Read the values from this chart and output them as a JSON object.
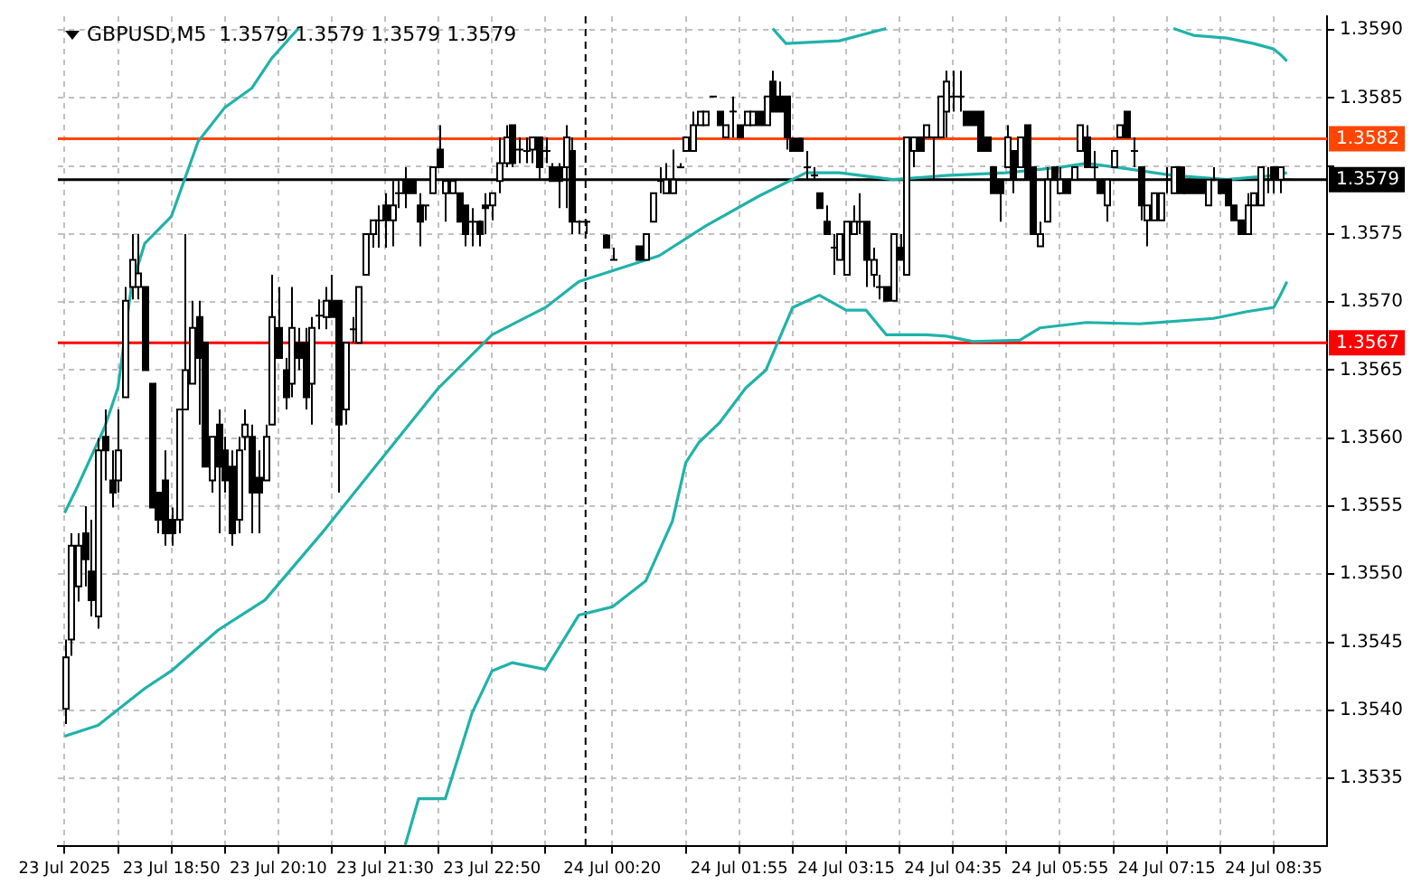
{
  "chart_data": {
    "type": "candlestick",
    "title": "GBPUSD,M5  1.3579 1.3579 1.3579 1.3579",
    "x": [
      "2025-07-23T17:30",
      "2025-07-23T17:35",
      "2025-07-23T17:40",
      "2025-07-23T17:45",
      "2025-07-23T17:50",
      "2025-07-23T17:55",
      "2025-07-23T18:00",
      "2025-07-23T18:05",
      "2025-07-23T18:10",
      "2025-07-23T18:15",
      "2025-07-23T18:20",
      "2025-07-23T18:25",
      "2025-07-23T18:30",
      "2025-07-23T18:35",
      "2025-07-23T18:40",
      "2025-07-23T18:45",
      "2025-07-23T18:50",
      "2025-07-23T18:55",
      "2025-07-23T19:00",
      "2025-07-23T19:05",
      "2025-07-23T19:10",
      "2025-07-23T19:15",
      "2025-07-23T19:20",
      "2025-07-23T19:25",
      "2025-07-23T19:30",
      "2025-07-23T19:35",
      "2025-07-23T19:40",
      "2025-07-23T19:45",
      "2025-07-23T19:50",
      "2025-07-23T19:55",
      "2025-07-23T20:00",
      "2025-07-23T20:05",
      "2025-07-23T20:10",
      "2025-07-23T20:15",
      "2025-07-23T20:20",
      "2025-07-23T20:25",
      "2025-07-23T20:30",
      "2025-07-23T20:35",
      "2025-07-23T20:40",
      "2025-07-23T20:45",
      "2025-07-23T20:50",
      "2025-07-23T20:55",
      "2025-07-23T21:00",
      "2025-07-23T21:05",
      "2025-07-23T21:10",
      "2025-07-23T21:15",
      "2025-07-23T21:20",
      "2025-07-23T21:25",
      "2025-07-23T21:30",
      "2025-07-23T21:35",
      "2025-07-23T21:40",
      "2025-07-23T21:45",
      "2025-07-23T21:50",
      "2025-07-23T21:55",
      "2025-07-23T22:00",
      "2025-07-23T22:05",
      "2025-07-23T22:10",
      "2025-07-23T22:15",
      "2025-07-23T22:20",
      "2025-07-23T22:25",
      "2025-07-23T22:30",
      "2025-07-23T22:35",
      "2025-07-23T22:40",
      "2025-07-23T22:45",
      "2025-07-23T22:50",
      "2025-07-23T22:55",
      "2025-07-23T23:00",
      "2025-07-23T23:05",
      "2025-07-23T23:10",
      "2025-07-23T23:15",
      "2025-07-23T23:20",
      "2025-07-23T23:25",
      "2025-07-23T23:30",
      "2025-07-23T23:35",
      "2025-07-23T23:40",
      "2025-07-23T23:45",
      "2025-07-23T23:50",
      "2025-07-23T23:55",
      "2025-07-24T00:00",
      "2025-07-24T00:15",
      "2025-07-24T00:20",
      "2025-07-24T00:40",
      "2025-07-24T00:45",
      "2025-07-24T00:50",
      "2025-07-24T00:55",
      "2025-07-24T01:00",
      "2025-07-24T01:05",
      "2025-07-24T01:10",
      "2025-07-24T01:15",
      "2025-07-24T01:20",
      "2025-07-24T01:25",
      "2025-07-24T01:30",
      "2025-07-24T01:35",
      "2025-07-24T01:40",
      "2025-07-24T01:45",
      "2025-07-24T01:50",
      "2025-07-24T01:55",
      "2025-07-24T02:00",
      "2025-07-24T02:05",
      "2025-07-24T02:10",
      "2025-07-24T02:15",
      "2025-07-24T02:20",
      "2025-07-24T02:25",
      "2025-07-24T02:30",
      "2025-07-24T02:35",
      "2025-07-24T02:40",
      "2025-07-24T02:45",
      "2025-07-24T02:50",
      "2025-07-24T02:55",
      "2025-07-24T03:00",
      "2025-07-24T03:05",
      "2025-07-24T03:10",
      "2025-07-24T03:15",
      "2025-07-24T03:20",
      "2025-07-24T03:25",
      "2025-07-24T03:30",
      "2025-07-24T03:35",
      "2025-07-24T03:40",
      "2025-07-24T03:45",
      "2025-07-24T03:50",
      "2025-07-24T03:55",
      "2025-07-24T04:00",
      "2025-07-24T04:05",
      "2025-07-24T04:10",
      "2025-07-24T04:15",
      "2025-07-24T04:20",
      "2025-07-24T04:25",
      "2025-07-24T04:30",
      "2025-07-24T04:35",
      "2025-07-24T04:40",
      "2025-07-24T04:45",
      "2025-07-24T04:50",
      "2025-07-24T04:55",
      "2025-07-24T05:00",
      "2025-07-24T05:05",
      "2025-07-24T05:10",
      "2025-07-24T05:15",
      "2025-07-24T05:20",
      "2025-07-24T05:25",
      "2025-07-24T05:30",
      "2025-07-24T05:35",
      "2025-07-24T05:40",
      "2025-07-24T05:45",
      "2025-07-24T05:50",
      "2025-07-24T05:55",
      "2025-07-24T06:00",
      "2025-07-24T06:05",
      "2025-07-24T06:10",
      "2025-07-24T06:15",
      "2025-07-24T06:20",
      "2025-07-24T06:25",
      "2025-07-24T06:30",
      "2025-07-24T06:35",
      "2025-07-24T06:40",
      "2025-07-24T06:45",
      "2025-07-24T06:50",
      "2025-07-24T06:55",
      "2025-07-24T07:00",
      "2025-07-24T07:05",
      "2025-07-24T07:10",
      "2025-07-24T07:15",
      "2025-07-24T07:20",
      "2025-07-24T07:25",
      "2025-07-24T07:30",
      "2025-07-24T07:35",
      "2025-07-24T07:40",
      "2025-07-24T07:45",
      "2025-07-24T07:50",
      "2025-07-24T07:55",
      "2025-07-24T08:00",
      "2025-07-24T08:05",
      "2025-07-24T08:10",
      "2025-07-24T08:15",
      "2025-07-24T08:20",
      "2025-07-24T08:25",
      "2025-07-24T08:30",
      "2025-07-24T08:35",
      "2025-07-24T08:40",
      "2025-07-24T08:45"
    ],
    "ohlc": [
      [
        1.35401,
        1.35452,
        1.3539,
        1.35439
      ],
      [
        1.35452,
        1.3553,
        1.3544,
        1.35521
      ],
      [
        1.35491,
        1.3553,
        1.3548,
        1.35521
      ],
      [
        1.3553,
        1.3555,
        1.35491,
        1.35511
      ],
      [
        1.35502,
        1.3554,
        1.35469,
        1.35481
      ],
      [
        1.35469,
        1.356,
        1.3546,
        1.35591
      ],
      [
        1.35601,
        1.35621,
        1.35569,
        1.35591
      ],
      [
        1.35569,
        1.35591,
        1.35549,
        1.3556
      ],
      [
        1.35569,
        1.35621,
        1.3556,
        1.35591
      ],
      [
        1.3563,
        1.35711,
        1.3563,
        1.35701
      ],
      [
        1.35711,
        1.3575,
        1.35702,
        1.35731
      ],
      [
        1.35711,
        1.3575,
        1.35702,
        1.35721
      ],
      [
        1.35711,
        1.35711,
        1.3565,
        1.3565
      ],
      [
        1.3564,
        1.3564,
        1.35549,
        1.35549
      ],
      [
        1.3556,
        1.3556,
        1.3553,
        1.3554
      ],
      [
        1.35569,
        1.35591,
        1.35521,
        1.3553
      ],
      [
        1.3554,
        1.35549,
        1.35521,
        1.3553
      ],
      [
        1.3554,
        1.35621,
        1.3553,
        1.35621
      ],
      [
        1.35621,
        1.3575,
        1.35621,
        1.3565
      ],
      [
        1.3564,
        1.35701,
        1.3564,
        1.35681
      ],
      [
        1.35689,
        1.35701,
        1.3561,
        1.35659
      ],
      [
        1.3567,
        1.3567,
        1.35579,
        1.35579
      ],
      [
        1.35569,
        1.35601,
        1.3556,
        1.35601
      ],
      [
        1.3561,
        1.35621,
        1.3553,
        1.35579
      ],
      [
        1.35591,
        1.35601,
        1.3556,
        1.35569
      ],
      [
        1.35579,
        1.35591,
        1.35521,
        1.3553
      ],
      [
        1.3554,
        1.35601,
        1.3553,
        1.35591
      ],
      [
        1.35601,
        1.35621,
        1.35591,
        1.3561
      ],
      [
        1.35601,
        1.3561,
        1.3553,
        1.3556
      ],
      [
        1.35571,
        1.35591,
        1.3553,
        1.3556
      ],
      [
        1.35569,
        1.3561,
        1.35569,
        1.35601
      ],
      [
        1.3561,
        1.3572,
        1.3561,
        1.35689
      ],
      [
        1.35681,
        1.35711,
        1.35659,
        1.35659
      ],
      [
        1.3565,
        1.35659,
        1.35621,
        1.3563
      ],
      [
        1.3564,
        1.35711,
        1.3563,
        1.35681
      ],
      [
        1.3567,
        1.35681,
        1.3565,
        1.35659
      ],
      [
        1.3567,
        1.35681,
        1.35621,
        1.3563
      ],
      [
        1.3564,
        1.35689,
        1.3561,
        1.35681
      ],
      [
        1.3569,
        1.35702,
        1.3568,
        1.35689
      ],
      [
        1.35689,
        1.35711,
        1.3568,
        1.35701
      ],
      [
        1.35701,
        1.3572,
        1.35689,
        1.35689
      ],
      [
        1.35701,
        1.35701,
        1.3556,
        1.3561
      ],
      [
        1.35621,
        1.3567,
        1.3561,
        1.3567
      ],
      [
        1.3568,
        1.35689,
        1.3567,
        1.35681
      ],
      [
        1.3567,
        1.35711,
        1.3567,
        1.35711
      ],
      [
        1.3572,
        1.3575,
        1.3572,
        1.3575
      ],
      [
        1.3575,
        1.3576,
        1.3574,
        1.3576
      ],
      [
        1.3576,
        1.35771,
        1.3574,
        1.35759
      ],
      [
        1.35771,
        1.3578,
        1.3574,
        1.3576
      ],
      [
        1.3576,
        1.35789,
        1.35741,
        1.35771
      ],
      [
        1.3578,
        1.35789,
        1.35769,
        1.3578
      ],
      [
        1.35789,
        1.35799,
        1.35769,
        1.3578
      ],
      [
        1.35789,
        1.35789,
        1.3578,
        1.3578
      ],
      [
        1.35771,
        1.3578,
        1.35741,
        1.35759
      ],
      [
        1.35771,
        1.35771,
        1.3576,
        1.35771
      ],
      [
        1.3578,
        1.35799,
        1.3578,
        1.35799
      ],
      [
        1.35812,
        1.3583,
        1.35799,
        1.35799
      ],
      [
        1.3578,
        1.35789,
        1.35759,
        1.35789
      ],
      [
        1.3578,
        1.35789,
        1.3578,
        1.35789
      ],
      [
        1.3578,
        1.3578,
        1.35759,
        1.35759
      ],
      [
        1.35771,
        1.35771,
        1.35741,
        1.3575
      ],
      [
        1.35759,
        1.35769,
        1.35741,
        1.3576
      ],
      [
        1.35759,
        1.3576,
        1.35741,
        1.3575
      ],
      [
        1.35771,
        1.3578,
        1.3575,
        1.35769
      ],
      [
        1.35771,
        1.3578,
        1.3576,
        1.3578
      ],
      [
        1.35789,
        1.35821,
        1.3578,
        1.35802
      ],
      [
        1.35802,
        1.3583,
        1.35799,
        1.35821
      ],
      [
        1.3583,
        1.3583,
        1.35799,
        1.35802
      ],
      [
        1.35812,
        1.35821,
        1.35802,
        1.35811
      ],
      [
        1.35811,
        1.35821,
        1.35802,
        1.35812
      ],
      [
        1.35812,
        1.35821,
        1.35802,
        1.35821
      ],
      [
        1.35821,
        1.35821,
        1.3579,
        1.35799
      ],
      [
        1.35811,
        1.35821,
        1.35802,
        1.35812
      ],
      [
        1.35799,
        1.35802,
        1.35789,
        1.35789
      ],
      [
        1.35799,
        1.35802,
        1.35769,
        1.35789
      ],
      [
        1.35799,
        1.3583,
        1.35769,
        1.35821
      ],
      [
        1.35811,
        1.35821,
        1.3575,
        1.35759
      ],
      [
        1.35759,
        1.3576,
        1.3575,
        1.35759
      ],
      [
        1.35759,
        1.3576,
        1.3575,
        1.3576
      ],
      [
        1.35749,
        1.3575,
        1.3574,
        1.3574
      ],
      [
        1.35731,
        1.3574,
        1.35731,
        1.35731
      ],
      [
        1.35741,
        1.35741,
        1.35731,
        1.35731
      ],
      [
        1.35731,
        1.3575,
        1.35731,
        1.3575
      ],
      [
        1.35759,
        1.3578,
        1.35759,
        1.3578
      ],
      [
        1.35789,
        1.35799,
        1.3578,
        1.3579
      ],
      [
        1.3578,
        1.35802,
        1.3578,
        1.3579
      ],
      [
        1.3578,
        1.35812,
        1.3578,
        1.3579
      ],
      [
        1.35799,
        1.35802,
        1.35799,
        1.35799
      ],
      [
        1.35811,
        1.35821,
        1.35811,
        1.35821
      ],
      [
        1.35811,
        1.3584,
        1.35811,
        1.3583
      ],
      [
        1.3583,
        1.3584,
        1.3583,
        1.3584
      ],
      [
        1.3583,
        1.3584,
        1.3583,
        1.3584
      ],
      [
        1.35851,
        1.35851,
        1.35851,
        1.35851
      ],
      [
        1.3584,
        1.3584,
        1.3583,
        1.3583
      ],
      [
        1.35821,
        1.3583,
        1.35821,
        1.3583
      ],
      [
        1.3584,
        1.35851,
        1.35821,
        1.3584
      ],
      [
        1.3583,
        1.3583,
        1.35821,
        1.35821
      ],
      [
        1.3583,
        1.3584,
        1.3583,
        1.3584
      ],
      [
        1.3583,
        1.3584,
        1.3583,
        1.3584
      ],
      [
        1.3584,
        1.3584,
        1.3583,
        1.3583
      ],
      [
        1.3583,
        1.35851,
        1.3583,
        1.35851
      ],
      [
        1.35862,
        1.3587,
        1.3584,
        1.3584
      ],
      [
        1.35851,
        1.35862,
        1.3584,
        1.3584
      ],
      [
        1.35851,
        1.35851,
        1.35812,
        1.35821
      ],
      [
        1.3582,
        1.35821,
        1.35811,
        1.35811
      ],
      [
        1.3582,
        1.35821,
        1.35811,
        1.35811
      ],
      [
        1.35799,
        1.35811,
        1.3579,
        1.35799
      ],
      [
        1.35793,
        1.35799,
        1.3579,
        1.35793
      ],
      [
        1.3578,
        1.3578,
        1.35769,
        1.35769
      ],
      [
        1.35759,
        1.35771,
        1.3575,
        1.3575
      ],
      [
        1.3574,
        1.3575,
        1.3572,
        1.3574
      ],
      [
        1.35731,
        1.3575,
        1.35731,
        1.3575
      ],
      [
        1.3572,
        1.35759,
        1.3572,
        1.35759
      ],
      [
        1.3575,
        1.35771,
        1.3575,
        1.35759
      ],
      [
        1.35759,
        1.3578,
        1.3575,
        1.3576
      ],
      [
        1.35759,
        1.35759,
        1.35711,
        1.35731
      ],
      [
        1.3572,
        1.3574,
        1.35711,
        1.35731
      ],
      [
        1.35711,
        1.3572,
        1.35702,
        1.35711
      ],
      [
        1.35711,
        1.35711,
        1.35701,
        1.35701
      ],
      [
        1.35701,
        1.3575,
        1.35701,
        1.3575
      ],
      [
        1.3574,
        1.3575,
        1.35731,
        1.35731
      ],
      [
        1.3572,
        1.35821,
        1.3572,
        1.35821
      ],
      [
        1.35811,
        1.35821,
        1.35799,
        1.35821
      ],
      [
        1.35821,
        1.35821,
        1.35811,
        1.35811
      ],
      [
        1.35821,
        1.3583,
        1.35821,
        1.3583
      ],
      [
        1.35821,
        1.35821,
        1.3579,
        1.35821
      ],
      [
        1.35821,
        1.35851,
        1.35821,
        1.35851
      ],
      [
        1.3584,
        1.3587,
        1.35821,
        1.35862
      ],
      [
        1.35851,
        1.3587,
        1.3584,
        1.3585
      ],
      [
        1.35851,
        1.3587,
        1.3584,
        1.35851
      ],
      [
        1.3584,
        1.3584,
        1.3583,
        1.3583
      ],
      [
        1.3584,
        1.3584,
        1.3583,
        1.3583
      ],
      [
        1.3584,
        1.3584,
        1.35811,
        1.35811
      ],
      [
        1.35821,
        1.35821,
        1.35811,
        1.35811
      ],
      [
        1.35799,
        1.35799,
        1.3578,
        1.3578
      ],
      [
        1.3579,
        1.3579,
        1.35759,
        1.3578
      ],
      [
        1.35799,
        1.3583,
        1.35799,
        1.35821
      ],
      [
        1.35811,
        1.35811,
        1.3578,
        1.3579
      ],
      [
        1.35799,
        1.35821,
        1.35799,
        1.35821
      ],
      [
        1.3583,
        1.3583,
        1.3579,
        1.3579
      ],
      [
        1.35799,
        1.35799,
        1.3575,
        1.3575
      ],
      [
        1.35741,
        1.35759,
        1.35741,
        1.3575
      ],
      [
        1.35759,
        1.35799,
        1.35759,
        1.3579
      ],
      [
        1.35799,
        1.35799,
        1.3579,
        1.3579
      ],
      [
        1.3578,
        1.35799,
        1.3578,
        1.3579
      ],
      [
        1.3579,
        1.3579,
        1.3578,
        1.3578
      ],
      [
        1.3579,
        1.35799,
        1.3579,
        1.35799
      ],
      [
        1.35811,
        1.3583,
        1.35811,
        1.3583
      ],
      [
        1.35821,
        1.3583,
        1.35799,
        1.35799
      ],
      [
        1.35799,
        1.35811,
        1.3579,
        1.35799
      ],
      [
        1.3579,
        1.3579,
        1.3578,
        1.3578
      ],
      [
        1.35771,
        1.3579,
        1.35759,
        1.3579
      ],
      [
        1.35799,
        1.35811,
        1.35799,
        1.35811
      ],
      [
        1.35821,
        1.3583,
        1.35821,
        1.3583
      ],
      [
        1.3584,
        1.3584,
        1.35821,
        1.35821
      ],
      [
        1.35811,
        1.35821,
        1.35799,
        1.35811
      ],
      [
        1.35799,
        1.35799,
        1.3576,
        1.35771
      ],
      [
        1.3576,
        1.35771,
        1.35741,
        1.35771
      ],
      [
        1.3576,
        1.3578,
        1.3576,
        1.3578
      ],
      [
        1.3576,
        1.3578,
        1.3576,
        1.3578
      ],
      [
        1.3579,
        1.35799,
        1.3578,
        1.3579
      ],
      [
        1.3578,
        1.35799,
        1.3578,
        1.35799
      ],
      [
        1.35799,
        1.35799,
        1.3578,
        1.3578
      ],
      [
        1.3579,
        1.3579,
        1.3578,
        1.3578
      ],
      [
        1.3579,
        1.3579,
        1.3578,
        1.3578
      ],
      [
        1.3579,
        1.3579,
        1.3578,
        1.3578
      ],
      [
        1.35771,
        1.3579,
        1.35771,
        1.3579
      ],
      [
        1.3579,
        1.35799,
        1.35789,
        1.3579
      ],
      [
        1.3579,
        1.3579,
        1.3578,
        1.3578
      ],
      [
        1.3579,
        1.3579,
        1.35771,
        1.35771
      ],
      [
        1.35771,
        1.35771,
        1.3576,
        1.3576
      ],
      [
        1.3576,
        1.3576,
        1.3575,
        1.3575
      ],
      [
        1.3575,
        1.3578,
        1.3575,
        1.35771
      ],
      [
        1.35771,
        1.3578,
        1.35771,
        1.3578
      ],
      [
        1.35771,
        1.35799,
        1.35771,
        1.35799
      ],
      [
        1.3579,
        1.35799,
        1.3578,
        1.3579
      ],
      [
        1.35799,
        1.35799,
        1.3578,
        1.3579
      ],
      [
        1.3579,
        1.35799,
        1.3578,
        1.35799
      ],
      [
        1.3579,
        1.3579,
        1.3579,
        1.3579
      ]
    ],
    "series": [
      {
        "type": "line",
        "color": "#20b2aa",
        "x": [
          "2025-07-23T17:30",
          "2025-07-23T17:40",
          "2025-07-23T18:00",
          "2025-07-23T18:10",
          "2025-07-23T18:20",
          "2025-07-23T18:30",
          "2025-07-23T18:50",
          "2025-07-23T19:10",
          "2025-07-23T19:30",
          "2025-07-23T19:50",
          "2025-07-23T20:05",
          "2025-07-23T20:25",
          "2025-07-23T20:30",
          "2025-07-24T02:15",
          "2025-07-24T02:20",
          "2025-07-24T02:30",
          "2025-07-24T03:10",
          "2025-07-24T03:45",
          "2025-07-24T03:50",
          "2025-07-24T07:15",
          "2025-07-24T07:20",
          "2025-07-24T07:35",
          "2025-07-24T08:00",
          "2025-07-24T08:20",
          "2025-07-24T08:35",
          "2025-07-24T08:40",
          "2025-07-24T08:45"
        ],
        "values": [
          1.35545,
          1.35565,
          1.35608,
          1.35637,
          1.35711,
          1.35743,
          1.35763,
          1.35818,
          1.35843,
          1.35857,
          1.35879,
          1.35901,
          null,
          null,
          1.35901,
          1.3589,
          1.35892,
          1.35901,
          null,
          null,
          1.35901,
          1.35896,
          1.35894,
          1.3589,
          1.35886,
          1.35882,
          1.35877
        ]
      },
      {
        "type": "line",
        "color": "#20b2aa",
        "x": [
          "2025-07-23T17:30",
          "2025-07-23T17:55",
          "2025-07-23T18:30",
          "2025-07-23T18:50",
          "2025-07-23T19:25",
          "2025-07-23T20:00",
          "2025-07-23T20:45",
          "2025-07-23T21:25",
          "2025-07-23T22:10",
          "2025-07-23T22:50",
          "2025-07-23T23:30",
          "2025-07-23T23:55",
          "2025-07-24T00:55",
          "2025-07-24T01:30",
          "2025-07-24T02:10",
          "2025-07-24T02:45",
          "2025-07-24T03:10",
          "2025-07-24T03:50",
          "2025-07-24T04:30",
          "2025-07-24T05:15",
          "2025-07-24T05:55",
          "2025-07-24T06:15",
          "2025-07-24T06:45",
          "2025-07-24T07:20",
          "2025-07-24T08:00",
          "2025-07-24T08:35",
          "2025-07-24T08:45"
        ],
        "values": [
          1.35381,
          1.35389,
          1.35416,
          1.35429,
          1.35459,
          1.35481,
          1.35533,
          1.35582,
          1.35637,
          1.35676,
          1.35696,
          1.35715,
          1.35734,
          1.35756,
          1.35778,
          1.35795,
          1.35795,
          1.3579,
          1.35793,
          1.35795,
          1.35799,
          1.35802,
          1.35798,
          1.35793,
          1.3579,
          1.35793,
          1.35795
        ]
      },
      {
        "type": "line",
        "color": "#20b2aa",
        "x": [
          "2025-07-23T21:45",
          "2025-07-23T21:55",
          "2025-07-23T22:15",
          "2025-07-23T22:35",
          "2025-07-23T22:50",
          "2025-07-23T23:05",
          "2025-07-23T23:30",
          "2025-07-23T23:55",
          "2025-07-24T00:20",
          "2025-07-24T00:45",
          "2025-07-24T01:05",
          "2025-07-24T01:15",
          "2025-07-24T01:25",
          "2025-07-24T01:40",
          "2025-07-24T02:00",
          "2025-07-24T02:15",
          "2025-07-24T02:35",
          "2025-07-24T02:55",
          "2025-07-24T03:15",
          "2025-07-24T03:30",
          "2025-07-24T03:45",
          "2025-07-24T04:15",
          "2025-07-24T04:30",
          "2025-07-24T04:50",
          "2025-07-24T05:25",
          "2025-07-24T05:40",
          "2025-07-24T06:15",
          "2025-07-24T06:55",
          "2025-07-24T07:50",
          "2025-07-24T08:15",
          "2025-07-24T08:35",
          "2025-07-24T08:40",
          "2025-07-24T08:45"
        ],
        "values": [
          1.35301,
          1.35335,
          1.35335,
          1.35398,
          1.35429,
          1.35435,
          1.3543,
          1.3547,
          1.35476,
          1.35495,
          1.35539,
          1.35582,
          1.35597,
          1.35611,
          1.35637,
          1.3565,
          1.35696,
          1.35705,
          1.35694,
          1.35694,
          1.35676,
          1.35676,
          1.35675,
          1.35671,
          1.35672,
          1.35681,
          1.35685,
          1.35684,
          1.35688,
          1.35693,
          1.35696,
          1.35705,
          1.35715
        ]
      }
    ],
    "xlim": [
      "2025-07-23T17:25",
      "2025-07-24T09:15"
    ],
    "xticks": [
      {
        "value": "2025-07-23T17:30",
        "label": "23 Jul 2025"
      },
      {
        "value": "2025-07-23T18:10",
        "label": null
      },
      {
        "value": "2025-07-23T18:50",
        "label": "23 Jul 18:50"
      },
      {
        "value": "2025-07-23T19:30",
        "label": null
      },
      {
        "value": "2025-07-23T20:10",
        "label": "23 Jul 20:10"
      },
      {
        "value": "2025-07-23T20:50",
        "label": null
      },
      {
        "value": "2025-07-23T21:30",
        "label": "23 Jul 21:30"
      },
      {
        "value": "2025-07-23T22:10",
        "label": null
      },
      {
        "value": "2025-07-23T22:50",
        "label": "23 Jul 22:50"
      },
      {
        "value": "2025-07-23T23:30",
        "label": null
      },
      {
        "value": "2025-07-24T00:20",
        "label": "24 Jul 00:20"
      },
      {
        "value": "2025-07-24T01:15",
        "label": null
      },
      {
        "value": "2025-07-24T01:55",
        "label": "24 Jul 01:55"
      },
      {
        "value": "2025-07-24T02:35",
        "label": null
      },
      {
        "value": "2025-07-24T03:15",
        "label": "24 Jul 03:15"
      },
      {
        "value": "2025-07-24T03:55",
        "label": null
      },
      {
        "value": "2025-07-24T04:35",
        "label": "24 Jul 04:35"
      },
      {
        "value": "2025-07-24T05:15",
        "label": null
      },
      {
        "value": "2025-07-24T05:55",
        "label": "24 Jul 05:55"
      },
      {
        "value": "2025-07-24T06:35",
        "label": null
      },
      {
        "value": "2025-07-24T07:15",
        "label": "24 Jul 07:15"
      },
      {
        "value": "2025-07-24T07:55",
        "label": null
      },
      {
        "value": "2025-07-24T08:35",
        "label": "24 Jul 08:35"
      }
    ],
    "ylim": [
      1.353,
      1.3591
    ],
    "yticks": [
      1.3535,
      {
        "value": 1.354,
        "label": "1.3540"
      },
      1.3545,
      {
        "value": 1.355,
        "label": "1.3550"
      },
      1.3555,
      {
        "value": 1.356,
        "label": "1.3560"
      },
      1.3565,
      {
        "value": 1.357,
        "label": "1.3570"
      },
      1.3575,
      {
        "value": 1.358,
        "label": null
      },
      1.3585,
      {
        "value": 1.359,
        "label": "1.3590"
      }
    ],
    "ref_lines": [
      {
        "axis": "y",
        "value": 1.3582,
        "label": "1.3582",
        "color": "#ff4500",
        "line_style": "solid"
      },
      {
        "axis": "y",
        "value": 1.3579,
        "label": "1.3579",
        "color": "#000000",
        "line_style": "solid"
      },
      {
        "axis": "y",
        "value": 1.3567,
        "label": "1.3567",
        "color": "#ff0000",
        "line_style": "solid"
      },
      {
        "axis": "x",
        "value": "2025-07-24T00:00",
        "color": "#000000",
        "line_style": "dashed"
      }
    ],
    "grid": true,
    "marker": "none"
  }
}
